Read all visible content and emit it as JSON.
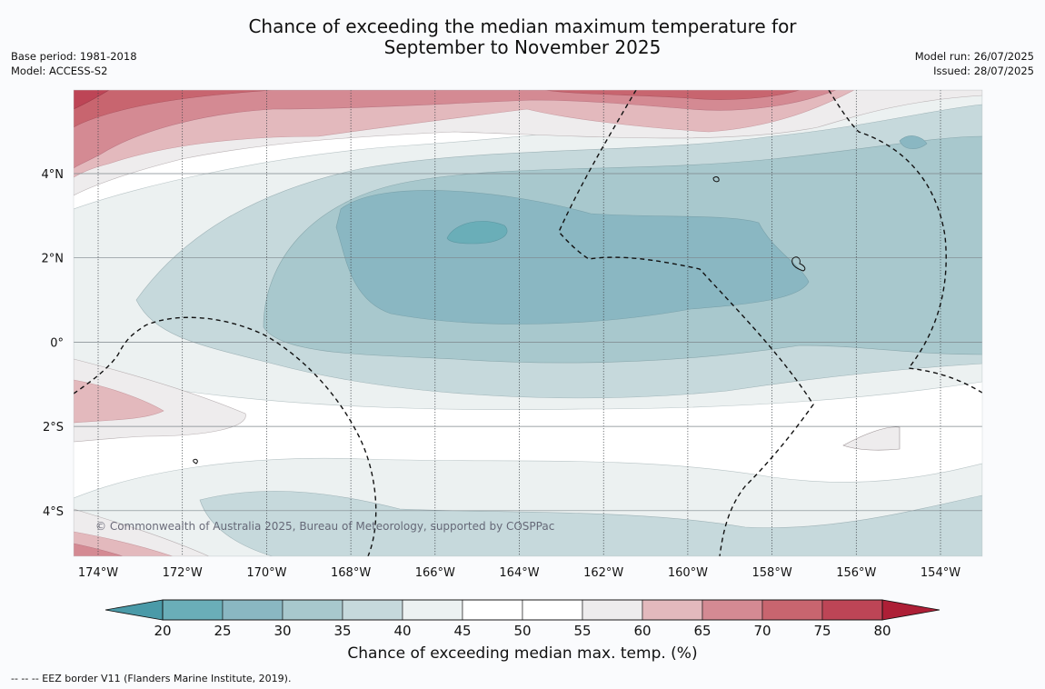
{
  "header": {
    "title_line1": "Chance of exceeding the median maximum temperature for",
    "title_line2": "September to November 2025",
    "base_period": "Base period: 1981-2018",
    "model": "Model: ACCESS-S2",
    "model_run": "Model run: 26/07/2025",
    "issued": "Issued: 28/07/2025"
  },
  "map": {
    "lon_ticks": [
      "174°W",
      "172°W",
      "170°W",
      "168°W",
      "166°W",
      "164°W",
      "162°W",
      "160°W",
      "158°W",
      "156°W",
      "154°W"
    ],
    "lat_ticks": [
      "4°N",
      "2°N",
      "0°",
      "2°S",
      "4°S"
    ],
    "copyright": "© Commonwealth of Australia 2025, Bureau of Meteorology, supported by COSPPac",
    "eez_note": "--  --  -- EEZ border V11 (Flanders Marine Institute, 2019)."
  },
  "legend": {
    "title": "Chance of exceeding median max. temp. (%)",
    "ticks": [
      "20",
      "25",
      "30",
      "35",
      "40",
      "45",
      "50",
      "55",
      "60",
      "65",
      "70",
      "75",
      "80"
    ],
    "colors": [
      "#6aaeb8",
      "#8ab7c2",
      "#a8c8cd",
      "#c6d9dc",
      "#ecf1f1",
      "#ffffff",
      "#ffffff",
      "#eeeced",
      "#e3b9bd",
      "#d48a93",
      "#c8656f",
      "#bd4556"
    ],
    "low_arrow_color": "#4a9aa8",
    "high_arrow_color": "#ad1f36"
  }
}
